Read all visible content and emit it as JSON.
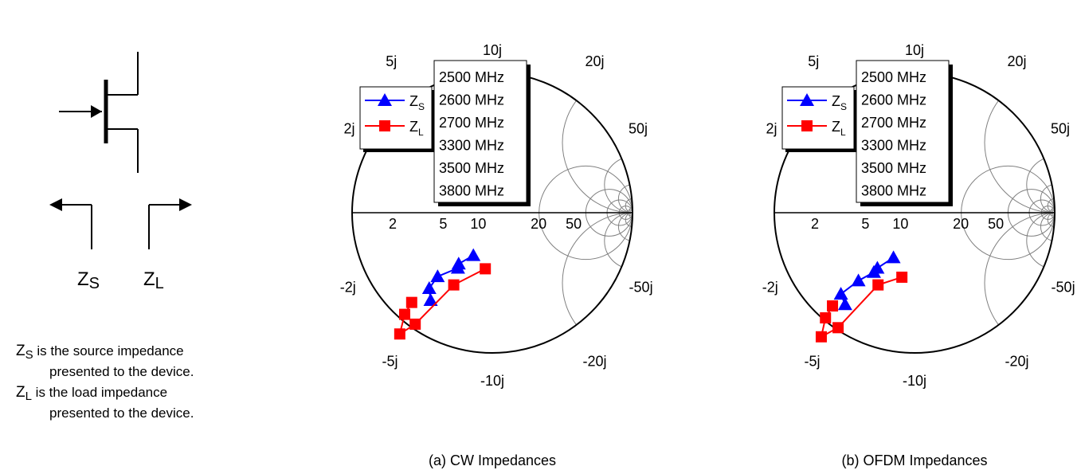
{
  "schematic": {
    "zs_letter": "Z",
    "zs_sub": "S",
    "zl_letter": "Z",
    "zl_sub": "L",
    "note_zs_letter": "Z",
    "note_zs_sub": "S",
    "note_zs_line1": " is the source impedance",
    "note_zs_line2": "presented to the device.",
    "note_zl_letter": "Z",
    "note_zl_sub": "L",
    "note_zl_line1": " is the load impedance",
    "note_zl_line2": "presented to the device."
  },
  "colors": {
    "zs": "#0000ff",
    "zl": "#ff0000",
    "grid": "#808080"
  },
  "chart_data": [
    {
      "type": "scatter",
      "subtype": "smith-chart",
      "caption": "(a) CW Impedances",
      "frequencies": [
        "2500 MHz",
        "2600 MHz",
        "2700 MHz",
        "3300 MHz",
        "3500 MHz",
        "3800 MHz"
      ],
      "resistance_labels": [
        "2",
        "5",
        "10",
        "20",
        "50"
      ],
      "reactance_labels": {
        "upper": [
          "2j",
          "5j",
          "10j",
          "20j",
          "50j"
        ],
        "lower": [
          "-2j",
          "-5j",
          "-10j",
          "-20j",
          "-50j"
        ]
      },
      "series": [
        {
          "name": "Z",
          "sub": "S",
          "color": "#0000ff",
          "marker": "triangle",
          "points": [
            [
              -0.88,
              -1.25
            ],
            [
              -0.9,
              -1.08
            ],
            [
              -0.78,
              -0.91
            ],
            [
              -0.49,
              -0.79
            ],
            [
              -0.48,
              -0.73
            ],
            [
              -0.27,
              -0.61
            ]
          ]
        },
        {
          "name": "Z",
          "sub": "L",
          "color": "#ff0000",
          "marker": "square",
          "points": [
            [
              -0.1,
              -0.8
            ],
            [
              -0.55,
              -1.03
            ],
            [
              -1.1,
              -1.59
            ],
            [
              -1.32,
              -1.73
            ],
            [
              -1.25,
              -1.45
            ],
            [
              -1.15,
              -1.28
            ]
          ]
        }
      ]
    },
    {
      "type": "scatter",
      "subtype": "smith-chart",
      "caption": "(b) OFDM Impedances",
      "frequencies": [
        "2500 MHz",
        "2600 MHz",
        "2700 MHz",
        "3300 MHz",
        "3500 MHz",
        "3800 MHz"
      ],
      "resistance_labels": [
        "2",
        "5",
        "10",
        "20",
        "50"
      ],
      "reactance_labels": {
        "upper": [
          "2j",
          "5j",
          "10j",
          "20j",
          "50j"
        ],
        "lower": [
          "-2j",
          "-5j",
          "-10j",
          "-20j",
          "-50j"
        ]
      },
      "series": [
        {
          "name": "Z",
          "sub": "S",
          "color": "#0000ff",
          "marker": "triangle",
          "points": [
            [
              -0.99,
              -1.31
            ],
            [
              -1.05,
              -1.16
            ],
            [
              -0.8,
              -0.97
            ],
            [
              -0.58,
              -0.85
            ],
            [
              -0.53,
              -0.79
            ],
            [
              -0.3,
              -0.64
            ]
          ]
        },
        {
          "name": "Z",
          "sub": "L",
          "color": "#ff0000",
          "marker": "square",
          "points": [
            [
              -0.18,
              -0.92
            ],
            [
              -0.52,
              -1.03
            ],
            [
              -1.09,
              -1.64
            ],
            [
              -1.33,
              -1.77
            ],
            [
              -1.27,
              -1.5
            ],
            [
              -1.17,
              -1.33
            ]
          ]
        }
      ]
    }
  ]
}
